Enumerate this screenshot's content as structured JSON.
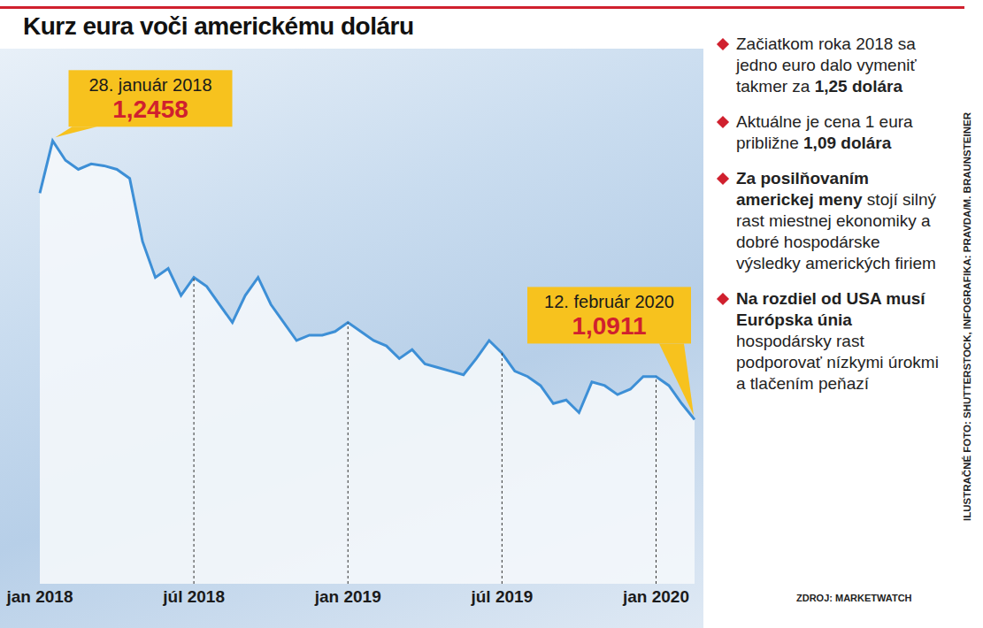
{
  "chart_data": {
    "type": "area",
    "title": "Kurz eura voči americkému doláru",
    "categories": [
      "jan 2018",
      null,
      null,
      null,
      null,
      null,
      null,
      null,
      null,
      null,
      null,
      null,
      "júl 2018",
      null,
      null,
      null,
      null,
      null,
      null,
      null,
      null,
      null,
      null,
      null,
      "jan 2019",
      null,
      null,
      null,
      null,
      null,
      null,
      null,
      null,
      null,
      null,
      null,
      "júl 2019",
      null,
      null,
      null,
      null,
      null,
      null,
      null,
      null,
      null,
      null,
      null,
      "jan 2020",
      null,
      null,
      null
    ],
    "values": [
      1.2168,
      1.2458,
      1.235,
      1.23,
      1.233,
      1.232,
      1.23,
      1.225,
      1.19,
      1.17,
      1.175,
      1.16,
      1.17,
      1.165,
      1.155,
      1.145,
      1.16,
      1.17,
      1.155,
      1.145,
      1.135,
      1.138,
      1.138,
      1.14,
      1.145,
      1.14,
      1.135,
      1.132,
      1.125,
      1.13,
      1.122,
      1.12,
      1.118,
      1.116,
      1.125,
      1.135,
      1.128,
      1.118,
      1.115,
      1.11,
      1.1,
      1.102,
      1.095,
      1.112,
      1.11,
      1.105,
      1.108,
      1.115,
      1.115,
      1.11,
      1.1,
      1.0911
    ],
    "color": "#3d8fd6",
    "ylim": [
      1.0,
      1.27
    ],
    "tick_labels": "x",
    "annotations": [
      {
        "text": "28. január 2018",
        "value": 1.2458,
        "label": "1,2458"
      },
      {
        "text": "12. február 2020",
        "value": 1.0911,
        "label": "1,0911"
      }
    ]
  },
  "bullets": [
    [
      {
        "text": "Začiatkom roka 2018 sa jedno euro dalo vymeniť takmer za ",
        "bold": false
      },
      {
        "text": "1,25 dolára",
        "bold": true
      }
    ],
    [
      {
        "text": "Aktuálne je cena 1 eura približne ",
        "bold": false
      },
      {
        "text": "1,09 dolára",
        "bold": true
      }
    ],
    [
      {
        "text": "Za posilňovaním americkej meny",
        "bold": true
      },
      {
        "text": " stojí silný rast miestnej ekonomiky a dobré hospodárske výsledky amerických firiem",
        "bold": false
      }
    ],
    [
      {
        "text": "Na rozdiel od USA musí Európska únia",
        "bold": true
      },
      {
        "text": " hospodársky rast podporovať nízkymi úrokmi a tlačením peňazí",
        "bold": false
      }
    ]
  ],
  "source": "ZDROJ: MARKETWATCH",
  "credit": "ILUSTRAČNÉ FOTO: SHUTTERSTOCK, INFOGRAFIKA: PRAVDA/M. BRAUNSTEINER"
}
